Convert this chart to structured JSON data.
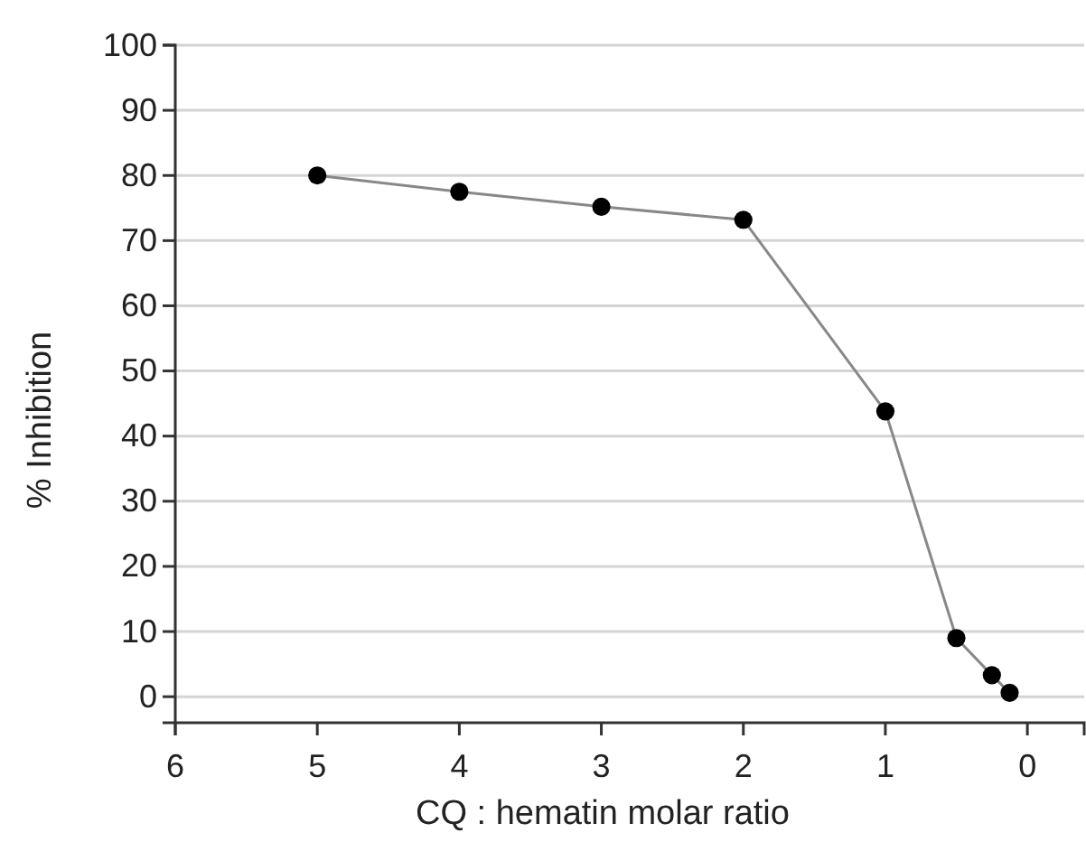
{
  "chart_data": {
    "type": "line",
    "xlabel": "CQ : hematin molar ratio",
    "ylabel": "% Inhibition",
    "x": [
      5,
      4,
      3,
      2,
      1,
      0.5,
      0.25,
      0.125
    ],
    "series": [
      {
        "color": "#000000",
        "values": [
          80,
          77.5,
          75.2,
          73.2,
          43.8,
          9,
          3.3,
          0.6
        ]
      }
    ],
    "xlim": [
      6,
      -0.4
    ],
    "xticks": [
      6,
      5,
      4,
      3,
      2,
      1,
      0
    ],
    "ylim": [
      -4,
      100
    ],
    "yticks": [
      0,
      10,
      20,
      30,
      40,
      50,
      60,
      70,
      80,
      90,
      100
    ],
    "grid": "y",
    "marker": "circle",
    "line_style": "solid"
  }
}
